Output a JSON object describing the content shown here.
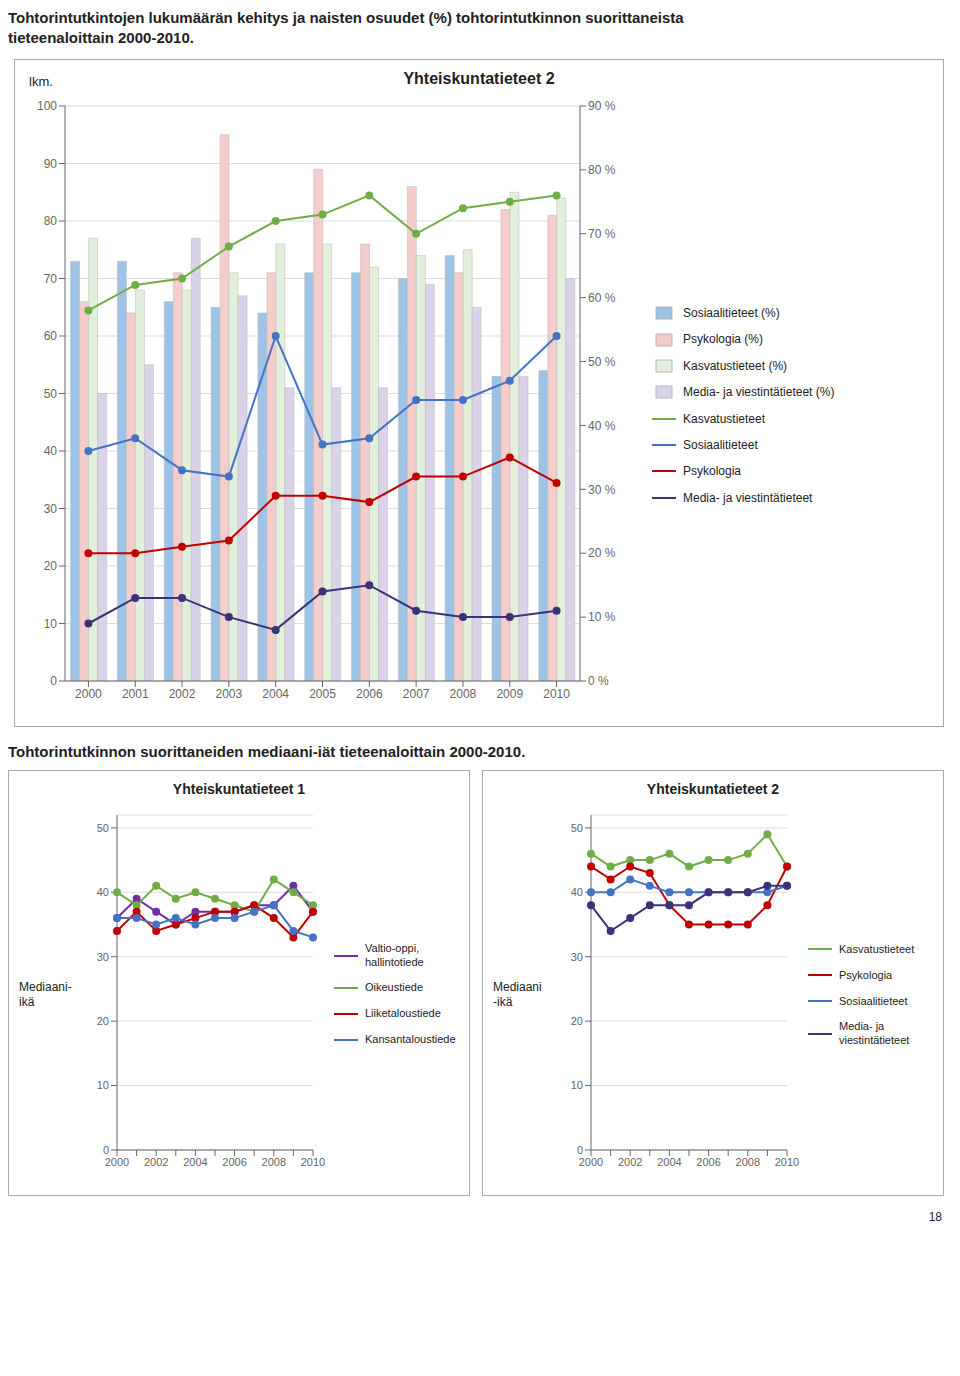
{
  "annotations": [
    "Tohtorintutkintojen lukumäärän kehitys ja naisten osuudet (%) tohtorintutkinnon suorittaneista",
    "tieteenaloittain 2000-2010.",
    "Tohtorintutkinnon suorittaneiden mediaani-iät tieteenaloittain 2000-2010.",
    "18"
  ],
  "chart_data": [
    {
      "type": "bar",
      "title": "Yhteiskuntatieteet 2",
      "ylabel": "lkm.",
      "categories": [
        2000,
        2001,
        2002,
        2003,
        2004,
        2005,
        2006,
        2007,
        2008,
        2009,
        2010
      ],
      "ylim": [
        0,
        100
      ],
      "yticks": [
        0,
        10,
        20,
        30,
        40,
        50,
        60,
        70,
        80,
        90,
        100
      ],
      "y2lim": [
        0,
        0.9
      ],
      "y2ticks": [
        {
          "value": 0,
          "label": "0 %"
        },
        {
          "value": 0.1,
          "label": "10 %"
        },
        {
          "value": 0.2,
          "label": "20 %"
        },
        {
          "value": 0.3,
          "label": "30 %"
        },
        {
          "value": 0.4,
          "label": "40 %"
        },
        {
          "value": 0.5,
          "label": "50 %"
        },
        {
          "value": 0.6,
          "label": "60 %"
        },
        {
          "value": 0.7,
          "label": "70 %"
        },
        {
          "value": 0.8,
          "label": "80 %"
        },
        {
          "value": 0.9,
          "label": "90 %"
        }
      ],
      "grid": true,
      "legend": "right",
      "series": [
        {
          "name": "Sosiaalitieteet (%)",
          "type": "bar",
          "color": "#9DC3E6",
          "values": [
            73,
            73,
            66,
            65,
            64,
            71,
            71,
            70,
            74,
            53,
            54
          ]
        },
        {
          "name": "Psykologia (%)",
          "type": "bar",
          "color": "#F4CCCA",
          "values": [
            66,
            64,
            71,
            95,
            71,
            89,
            76,
            86,
            71,
            82,
            81
          ]
        },
        {
          "name": "Kasvatustieteet (%)",
          "type": "bar",
          "color": "#E2EFDA",
          "values": [
            77,
            68,
            68,
            71,
            76,
            76,
            72,
            74,
            75,
            85,
            84
          ]
        },
        {
          "name": "Media- ja viestintätieteet (%)",
          "type": "bar",
          "color": "#D9D2E9",
          "values": [
            50,
            55,
            77,
            67,
            51,
            51,
            51,
            69,
            65,
            53,
            70
          ]
        },
        {
          "name": "Kasvatustieteet",
          "type": "line",
          "axis": "y2",
          "color": "#70AD47",
          "marker": "circle",
          "values": [
            0.58,
            0.62,
            0.63,
            0.68,
            0.72,
            0.73,
            0.76,
            0.7,
            0.74,
            0.75,
            0.76
          ]
        },
        {
          "name": "Sosiaalitieteet",
          "type": "line",
          "axis": "y2",
          "color": "#4472C4",
          "marker": "circle",
          "values": [
            0.36,
            0.38,
            0.33,
            0.32,
            0.54,
            0.37,
            0.38,
            0.44,
            0.44,
            0.47,
            0.54
          ]
        },
        {
          "name": "Psykologia",
          "type": "line",
          "axis": "y2",
          "color": "#C00000",
          "marker": "circle",
          "values": [
            0.2,
            0.2,
            0.21,
            0.22,
            0.29,
            0.29,
            0.28,
            0.32,
            0.32,
            0.35,
            0.31
          ]
        },
        {
          "name": "Media- ja viestintätieteet",
          "type": "line",
          "axis": "y2",
          "color": "#3B3278",
          "marker": "circle",
          "values": [
            0.09,
            0.13,
            0.13,
            0.1,
            0.08,
            0.14,
            0.15,
            0.11,
            0.1,
            0.1,
            0.11
          ]
        }
      ]
    },
    {
      "type": "line",
      "title": "Yhteiskuntatieteet 1",
      "ylabel": "Mediaani-\nikä",
      "categories": [
        2000,
        null,
        2002,
        null,
        2004,
        null,
        2006,
        null,
        2008,
        null,
        2010
      ],
      "ylim": [
        0,
        52
      ],
      "yticks": [
        0,
        10,
        20,
        30,
        40,
        50
      ],
      "grid": true,
      "legend": "right",
      "series": [
        {
          "name": "Valtio-oppi,\nhallintotiede",
          "color": "#7030A0",
          "marker": "circle",
          "values": [
            36,
            39,
            37,
            35,
            37,
            37,
            37,
            38,
            38,
            41,
            37
          ]
        },
        {
          "name": "Oikeustiede",
          "color": "#70AD47",
          "marker": "circle",
          "values": [
            40,
            38,
            41,
            39,
            40,
            39,
            38,
            37,
            42,
            40,
            38
          ]
        },
        {
          "name": "Liiketaloustiede",
          "color": "#C00000",
          "marker": "circle",
          "values": [
            34,
            37,
            34,
            35,
            36,
            37,
            37,
            38,
            36,
            33,
            37
          ]
        },
        {
          "name": "Kansantaloustiede",
          "color": "#4472C4",
          "marker": "circle",
          "values": [
            36,
            36,
            35,
            36,
            35,
            36,
            36,
            37,
            38,
            34,
            33
          ]
        }
      ]
    },
    {
      "type": "line",
      "title": "Yhteiskuntatieteet 2",
      "ylabel": "Mediaani\n-ikä",
      "categories": [
        2000,
        null,
        2002,
        null,
        2004,
        null,
        2006,
        null,
        2008,
        null,
        2010
      ],
      "ylim": [
        0,
        52
      ],
      "yticks": [
        0,
        10,
        20,
        30,
        40,
        50
      ],
      "grid": true,
      "legend": "right",
      "series": [
        {
          "name": "Kasvatustieteet",
          "color": "#70AD47",
          "marker": "circle",
          "values": [
            46,
            44,
            45,
            45,
            46,
            44,
            45,
            45,
            46,
            49,
            44
          ]
        },
        {
          "name": "Psykologia",
          "color": "#C00000",
          "marker": "circle",
          "values": [
            44,
            42,
            44,
            43,
            38,
            35,
            35,
            35,
            35,
            38,
            44
          ]
        },
        {
          "name": "Sosiaalitieteet",
          "color": "#4472C4",
          "marker": "circle",
          "values": [
            40,
            40,
            42,
            41,
            40,
            40,
            40,
            40,
            40,
            40,
            41
          ]
        },
        {
          "name": "Media- ja\nviestintätieteet",
          "color": "#3B3278",
          "marker": "circle",
          "values": [
            38,
            34,
            36,
            38,
            38,
            38,
            40,
            40,
            40,
            41,
            41
          ]
        }
      ]
    }
  ]
}
